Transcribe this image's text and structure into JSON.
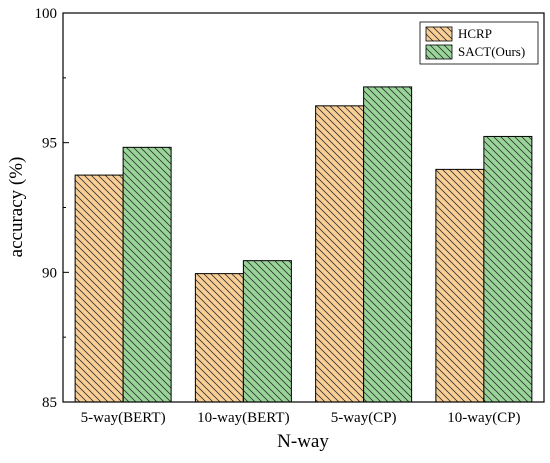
{
  "chart_data": {
    "type": "bar",
    "title": "",
    "xlabel": "N-way",
    "ylabel": "accuracy (%)",
    "categories": [
      "5-way(BERT)",
      "10-way(BERT)",
      "5-way(CP)",
      "10-way(CP)"
    ],
    "ylim": [
      85,
      100
    ],
    "yticks": [
      85,
      90,
      95,
      100
    ],
    "grid": false,
    "legend_position": "top-right",
    "series": [
      {
        "name": "HCRP",
        "values": [
          93.75,
          89.95,
          96.42,
          93.97
        ],
        "color": "#f9cf95",
        "hatch": "diagonal-down"
      },
      {
        "name": "SACT(Ours)",
        "values": [
          94.82,
          90.45,
          97.15,
          95.24
        ],
        "color": "#99d599",
        "hatch": "diagonal-down"
      }
    ]
  }
}
